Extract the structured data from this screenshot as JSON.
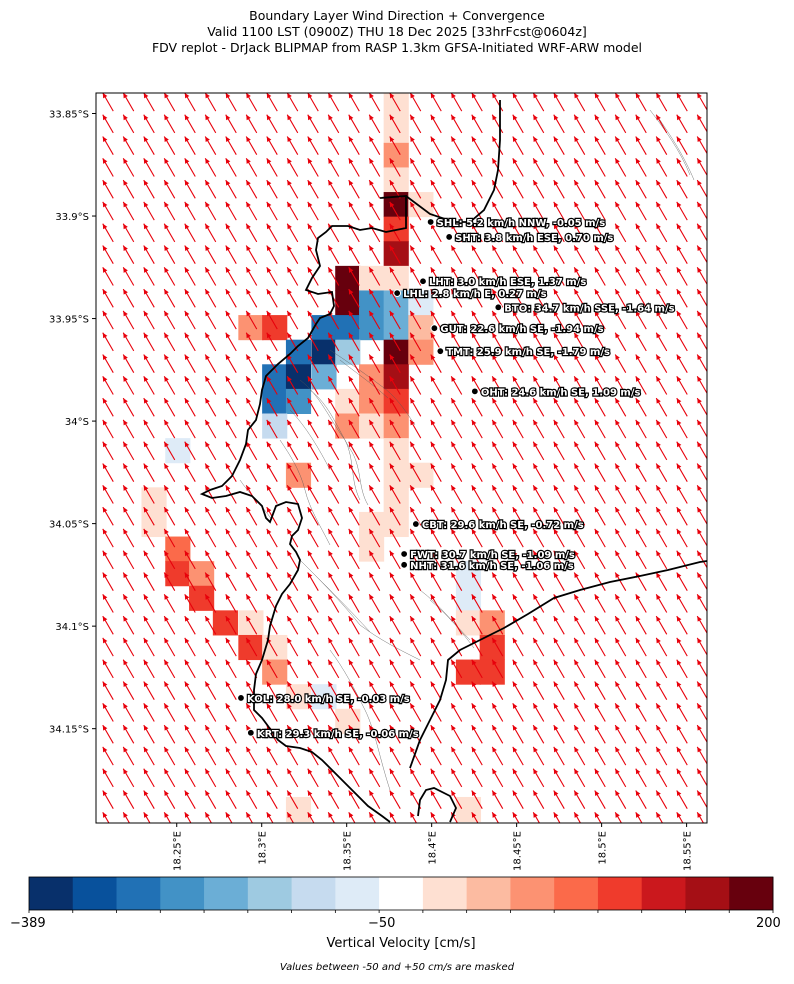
{
  "title_lines": [
    "Boundary Layer Wind Direction + Convergence",
    "Valid 1100 LST (0900Z) THU 18 Dec 2025 [33hrFcst@0604z]",
    "FDV replot - DrJack BLIPMAP from RASP 1.3km GFSA-Initiated WRF-ARW model"
  ],
  "colors": {
    "arrow": "#e8000b",
    "coast": "#000000",
    "station": "#000000",
    "colormap": [
      "#08306b",
      "#08519c",
      "#2171b5",
      "#4292c6",
      "#6baed6",
      "#9ecae1",
      "#c6dbef",
      "#deebf7",
      "#ffffff",
      "#fee0d2",
      "#fcbba1",
      "#fc9272",
      "#fb6a4a",
      "#ef3b2c",
      "#cb181d",
      "#a50f15",
      "#67000d"
    ]
  },
  "map": {
    "lat_ticks": [
      "33.85°S",
      "33.9°S",
      "33.95°S",
      "34°S",
      "34.05°S",
      "34.1°S",
      "34.15°S"
    ],
    "lon_ticks": [
      "18.25°E",
      "18.3°E",
      "18.35°E",
      "18.4°E",
      "18.45°E",
      "18.5°E",
      "18.55°E"
    ],
    "lat_top": -33.84,
    "lat_bottom": -34.196,
    "lon_left": 18.2025,
    "lon_right": 18.562,
    "wind_direction_deg_from": 150
  },
  "chart_data": {
    "type": "heatmap",
    "title": "Boundary Layer Wind Direction + Convergence",
    "colorbar": {
      "label": "Vertical Velocity [cm/s]",
      "min": -389,
      "mid": -50,
      "max": 200,
      "min_label": "−389",
      "mid_label": "−50",
      "max_label": "200"
    },
    "mask_note": "Values between -50 and +50 cm/s are masked",
    "stations": [
      {
        "id": "SHL",
        "label": "SHL: 5.2 km/h NNW, -0.05 m/s",
        "lon": 18.3994,
        "lat": -33.9029
      },
      {
        "id": "SHT",
        "label": "SHT: 3.8 km/h ESE, 0.70 m/s",
        "lon": 18.4103,
        "lat": -33.9102
      },
      {
        "id": "LHT",
        "label": "LHT: 3.0 km/h ESE, 1.37 m/s",
        "lon": 18.3949,
        "lat": -33.9318
      },
      {
        "id": "LHL",
        "label": "LHL: 2.8 km/h E, 0.27 m/s",
        "lon": 18.3797,
        "lat": -33.9376
      },
      {
        "id": "BTO",
        "label": "BTO: 34.7 km/h SSE, -1.64 m/s",
        "lon": 18.4392,
        "lat": -33.9445
      },
      {
        "id": "GUT",
        "label": "GUT: 22.6 km/h SE, -1.94 m/s",
        "lon": 18.4016,
        "lat": -33.9547
      },
      {
        "id": "TMT",
        "label": "TMT: 25.9 km/h SE, -1.79 m/s",
        "lon": 18.4051,
        "lat": -33.9659
      },
      {
        "id": "OHT",
        "label": "OHT: 24.6 km/h SE, 1.09 m/s",
        "lon": 18.4254,
        "lat": -33.9855
      },
      {
        "id": "CBT",
        "label": "CBT: 29.6 km/h SE, -0.72 m/s",
        "lon": 18.3907,
        "lat": -34.0502
      },
      {
        "id": "FWT",
        "label": "FWT: 30.7 km/h SE, -1.09 m/s",
        "lon": 18.3838,
        "lat": -34.0648
      },
      {
        "id": "NHT",
        "label": "NHT: 31.6 km/h SE, -1.06 m/s",
        "lon": 18.3838,
        "lat": -34.0701
      },
      {
        "id": "KOL",
        "label": "KOL: 28.0 km/h SE, -0.03 m/s",
        "lon": 18.2878,
        "lat": -34.135
      },
      {
        "id": "KRT",
        "label": "KRT: 29.3 km/h SE, -0.06 m/s",
        "lon": 18.2936,
        "lat": -34.152
      }
    ],
    "cells": [
      {
        "lon": 18.379,
        "lat": -33.8463,
        "v": 65
      },
      {
        "lon": 18.379,
        "lat": -33.8583,
        "v": 65
      },
      {
        "lon": 18.379,
        "lat": -33.8703,
        "v": 90
      },
      {
        "lon": 18.379,
        "lat": -33.8823,
        "v": 65
      },
      {
        "lon": 18.379,
        "lat": -33.8943,
        "v": 200
      },
      {
        "lon": 18.3935,
        "lat": -33.8943,
        "v": 65
      },
      {
        "lon": 18.379,
        "lat": -33.9063,
        "v": 130
      },
      {
        "lon": 18.379,
        "lat": -33.9183,
        "v": 170
      },
      {
        "lon": 18.3505,
        "lat": -33.9303,
        "v": 200
      },
      {
        "lon": 18.3645,
        "lat": -33.9303,
        "v": 65
      },
      {
        "lon": 18.379,
        "lat": -33.9303,
        "v": 65
      },
      {
        "lon": 18.3505,
        "lat": -33.9423,
        "v": 200
      },
      {
        "lon": 18.3645,
        "lat": -33.9423,
        "v": -250
      },
      {
        "lon": 18.379,
        "lat": -33.9423,
        "v": -200
      },
      {
        "lon": 18.3935,
        "lat": -33.9423,
        "v": -60
      },
      {
        "lon": 18.2935,
        "lat": -33.9543,
        "v": 90
      },
      {
        "lon": 18.3075,
        "lat": -33.9543,
        "v": 130
      },
      {
        "lon": 18.3365,
        "lat": -33.9543,
        "v": -300
      },
      {
        "lon": 18.3505,
        "lat": -33.9543,
        "v": -300
      },
      {
        "lon": 18.3645,
        "lat": -33.9543,
        "v": -250
      },
      {
        "lon": 18.379,
        "lat": -33.9543,
        "v": -200
      },
      {
        "lon": 18.3935,
        "lat": -33.9543,
        "v": 70
      },
      {
        "lon": 18.3215,
        "lat": -33.9663,
        "v": -300
      },
      {
        "lon": 18.3365,
        "lat": -33.9663,
        "v": -389
      },
      {
        "lon": 18.3505,
        "lat": -33.9663,
        "v": -150
      },
      {
        "lon": 18.379,
        "lat": -33.9663,
        "v": 200
      },
      {
        "lon": 18.3935,
        "lat": -33.9663,
        "v": 90
      },
      {
        "lon": 18.3075,
        "lat": -33.9783,
        "v": -300
      },
      {
        "lon": 18.3215,
        "lat": -33.9783,
        "v": -389
      },
      {
        "lon": 18.3365,
        "lat": -33.9783,
        "v": -200
      },
      {
        "lon": 18.3645,
        "lat": -33.9783,
        "v": 90
      },
      {
        "lon": 18.379,
        "lat": -33.9783,
        "v": 170
      },
      {
        "lon": 18.3075,
        "lat": -33.9903,
        "v": -300
      },
      {
        "lon": 18.3215,
        "lat": -33.9903,
        "v": -250
      },
      {
        "lon": 18.3505,
        "lat": -33.9903,
        "v": 65
      },
      {
        "lon": 18.3645,
        "lat": -33.9903,
        "v": 90
      },
      {
        "lon": 18.379,
        "lat": -33.9903,
        "v": 130
      },
      {
        "lon": 18.3075,
        "lat": -34.0023,
        "v": -100
      },
      {
        "lon": 18.3505,
        "lat": -34.0023,
        "v": 90
      },
      {
        "lon": 18.3645,
        "lat": -34.0023,
        "v": 65
      },
      {
        "lon": 18.379,
        "lat": -34.0023,
        "v": 90
      },
      {
        "lon": 18.2505,
        "lat": -34.0143,
        "v": -60
      },
      {
        "lon": 18.379,
        "lat": -34.0143,
        "v": 65
      },
      {
        "lon": 18.3215,
        "lat": -34.0263,
        "v": 90
      },
      {
        "lon": 18.379,
        "lat": -34.0263,
        "v": 65
      },
      {
        "lon": 18.3935,
        "lat": -34.0263,
        "v": 65
      },
      {
        "lon": 18.2365,
        "lat": -34.0383,
        "v": 65
      },
      {
        "lon": 18.379,
        "lat": -34.0383,
        "v": 65
      },
      {
        "lon": 18.2365,
        "lat": -34.0503,
        "v": 65
      },
      {
        "lon": 18.3645,
        "lat": -34.0503,
        "v": 65
      },
      {
        "lon": 18.379,
        "lat": -34.0503,
        "v": 65
      },
      {
        "lon": 18.2505,
        "lat": -34.0623,
        "v": 110
      },
      {
        "lon": 18.3645,
        "lat": -34.0623,
        "v": 65
      },
      {
        "lon": 18.2505,
        "lat": -34.0743,
        "v": 130
      },
      {
        "lon": 18.2645,
        "lat": -34.0743,
        "v": 90
      },
      {
        "lon": 18.4215,
        "lat": -34.0743,
        "v": -60
      },
      {
        "lon": 18.2645,
        "lat": -34.0863,
        "v": 130
      },
      {
        "lon": 18.4215,
        "lat": -34.0863,
        "v": -60
      },
      {
        "lon": 18.2785,
        "lat": -34.0983,
        "v": 130
      },
      {
        "lon": 18.2935,
        "lat": -34.0983,
        "v": 65
      },
      {
        "lon": 18.4215,
        "lat": -34.0983,
        "v": 65
      },
      {
        "lon": 18.4355,
        "lat": -34.0983,
        "v": 90
      },
      {
        "lon": 18.2935,
        "lat": -34.1103,
        "v": 130
      },
      {
        "lon": 18.3075,
        "lat": -34.1103,
        "v": 65
      },
      {
        "lon": 18.4355,
        "lat": -34.1103,
        "v": 130
      },
      {
        "lon": 18.3075,
        "lat": -34.1223,
        "v": 90
      },
      {
        "lon": 18.4215,
        "lat": -34.1223,
        "v": 130
      },
      {
        "lon": 18.4355,
        "lat": -34.1223,
        "v": 130
      },
      {
        "lon": 18.3215,
        "lat": -34.1343,
        "v": 65
      },
      {
        "lon": 18.3365,
        "lat": -34.1343,
        "v": -60
      },
      {
        "lon": 18.3505,
        "lat": -34.1463,
        "v": 65
      },
      {
        "lon": 18.3215,
        "lat": -34.1893,
        "v": 65
      },
      {
        "lon": 18.4215,
        "lat": -34.1893,
        "v": 65
      }
    ]
  }
}
